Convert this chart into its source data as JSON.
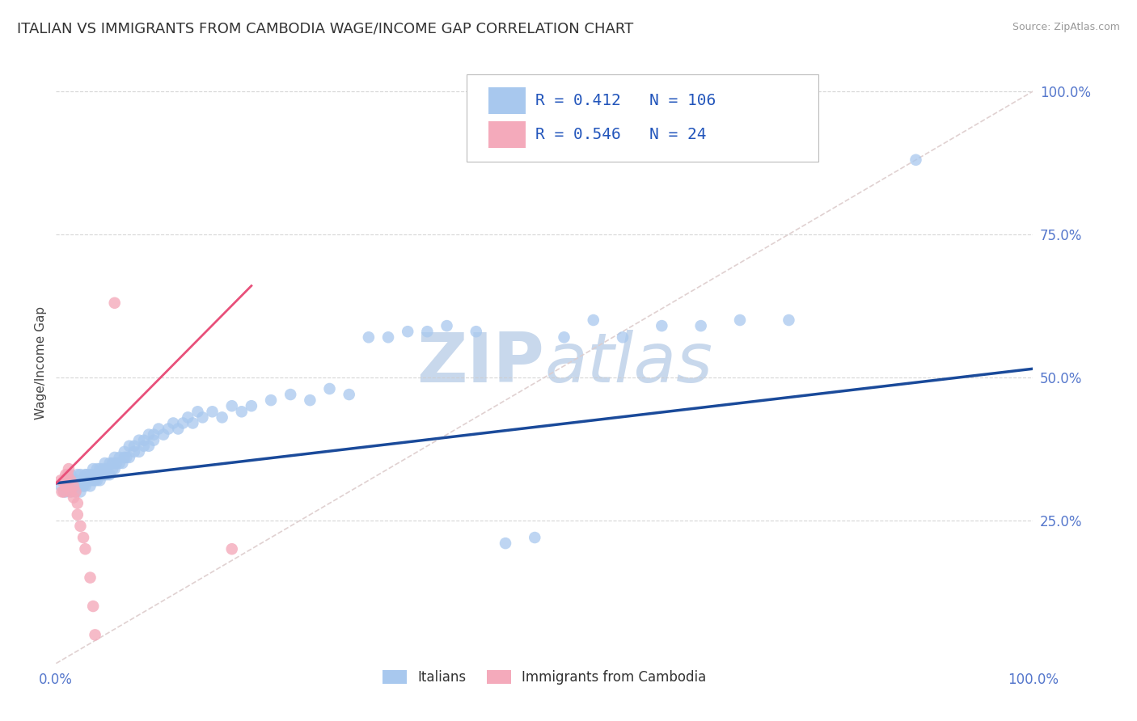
{
  "title": "ITALIAN VS IMMIGRANTS FROM CAMBODIA WAGE/INCOME GAP CORRELATION CHART",
  "source_text": "Source: ZipAtlas.com",
  "ylabel": "Wage/Income Gap",
  "x_tick_labels": [
    "0.0%",
    "100.0%"
  ],
  "y_tick_labels": [
    "25.0%",
    "50.0%",
    "75.0%",
    "100.0%"
  ],
  "legend_label1": "Italians",
  "legend_label2": "Immigrants from Cambodia",
  "R1": 0.412,
  "N1": 106,
  "R2": 0.546,
  "N2": 24,
  "color_blue": "#A8C8EE",
  "color_blue_line": "#1A4A9A",
  "color_pink": "#F4AABB",
  "color_pink_line": "#E8507A",
  "color_diag": "#DDCCCC",
  "watermark_color": "#C8D8EC",
  "background_color": "#FFFFFF",
  "title_color": "#333333",
  "title_fontsize": 13,
  "tick_color": "#5577CC",
  "legend_text_color": "#2255BB",
  "xlim": [
    0.0,
    1.0
  ],
  "ylim": [
    0.0,
    1.0
  ],
  "blue_x": [
    0.005,
    0.008,
    0.01,
    0.01,
    0.012,
    0.013,
    0.015,
    0.015,
    0.015,
    0.018,
    0.018,
    0.02,
    0.02,
    0.02,
    0.022,
    0.022,
    0.025,
    0.025,
    0.025,
    0.025,
    0.028,
    0.028,
    0.03,
    0.03,
    0.03,
    0.032,
    0.032,
    0.035,
    0.035,
    0.035,
    0.038,
    0.038,
    0.04,
    0.04,
    0.042,
    0.042,
    0.045,
    0.045,
    0.045,
    0.048,
    0.048,
    0.05,
    0.05,
    0.052,
    0.052,
    0.055,
    0.055,
    0.058,
    0.058,
    0.06,
    0.06,
    0.062,
    0.065,
    0.065,
    0.068,
    0.07,
    0.07,
    0.072,
    0.075,
    0.075,
    0.08,
    0.08,
    0.085,
    0.085,
    0.09,
    0.09,
    0.095,
    0.095,
    0.1,
    0.1,
    0.105,
    0.11,
    0.115,
    0.12,
    0.125,
    0.13,
    0.135,
    0.14,
    0.145,
    0.15,
    0.16,
    0.17,
    0.18,
    0.19,
    0.2,
    0.22,
    0.24,
    0.26,
    0.28,
    0.3,
    0.32,
    0.34,
    0.36,
    0.38,
    0.4,
    0.43,
    0.46,
    0.49,
    0.52,
    0.55,
    0.58,
    0.62,
    0.66,
    0.7,
    0.75,
    0.88
  ],
  "blue_y": [
    0.31,
    0.3,
    0.32,
    0.3,
    0.31,
    0.32,
    0.31,
    0.3,
    0.33,
    0.31,
    0.32,
    0.3,
    0.31,
    0.32,
    0.31,
    0.33,
    0.32,
    0.31,
    0.3,
    0.33,
    0.32,
    0.31,
    0.33,
    0.31,
    0.32,
    0.32,
    0.33,
    0.31,
    0.32,
    0.33,
    0.32,
    0.34,
    0.32,
    0.33,
    0.32,
    0.34,
    0.33,
    0.32,
    0.34,
    0.33,
    0.34,
    0.33,
    0.35,
    0.33,
    0.34,
    0.33,
    0.35,
    0.34,
    0.35,
    0.34,
    0.36,
    0.35,
    0.35,
    0.36,
    0.35,
    0.36,
    0.37,
    0.36,
    0.36,
    0.38,
    0.37,
    0.38,
    0.37,
    0.39,
    0.38,
    0.39,
    0.38,
    0.4,
    0.39,
    0.4,
    0.41,
    0.4,
    0.41,
    0.42,
    0.41,
    0.42,
    0.43,
    0.42,
    0.44,
    0.43,
    0.44,
    0.43,
    0.45,
    0.44,
    0.45,
    0.46,
    0.47,
    0.46,
    0.48,
    0.47,
    0.57,
    0.57,
    0.58,
    0.58,
    0.59,
    0.58,
    0.21,
    0.22,
    0.57,
    0.6,
    0.57,
    0.59,
    0.59,
    0.6,
    0.6,
    0.88
  ],
  "pink_x": [
    0.005,
    0.006,
    0.008,
    0.008,
    0.01,
    0.01,
    0.012,
    0.012,
    0.013,
    0.015,
    0.015,
    0.018,
    0.018,
    0.02,
    0.022,
    0.022,
    0.025,
    0.028,
    0.03,
    0.035,
    0.038,
    0.04,
    0.06,
    0.18
  ],
  "pink_y": [
    0.32,
    0.3,
    0.3,
    0.32,
    0.31,
    0.33,
    0.31,
    0.33,
    0.34,
    0.32,
    0.3,
    0.31,
    0.29,
    0.3,
    0.28,
    0.26,
    0.24,
    0.22,
    0.2,
    0.15,
    0.1,
    0.05,
    0.63,
    0.2
  ],
  "blue_line_x0": 0.0,
  "blue_line_y0": 0.315,
  "blue_line_x1": 1.0,
  "blue_line_y1": 0.515,
  "pink_line_x0": 0.0,
  "pink_line_y0": 0.315,
  "pink_line_x1": 0.2,
  "pink_line_y1": 0.66
}
